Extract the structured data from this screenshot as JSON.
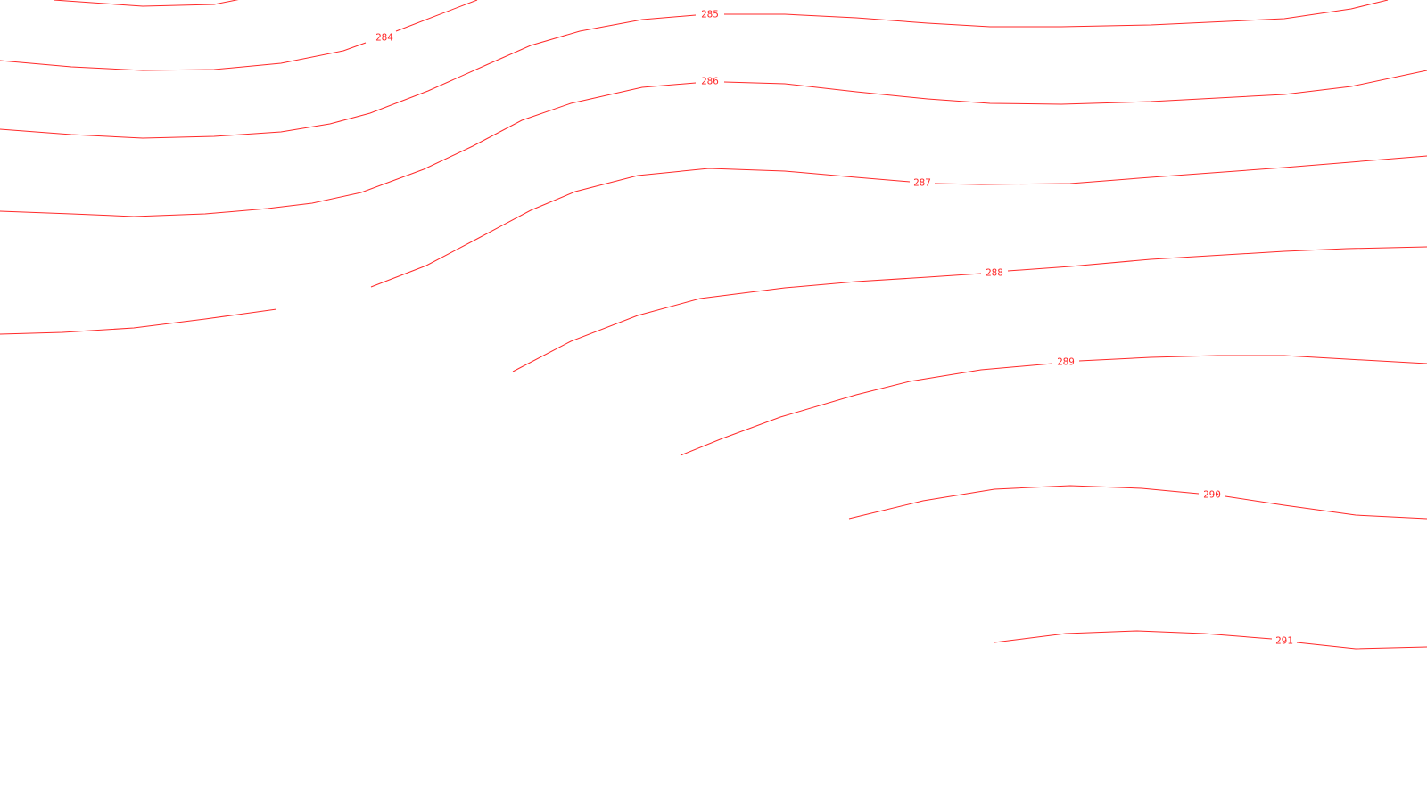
{
  "map": {
    "line_color": "#ff2a2a",
    "label_color": "#ff2a2a",
    "background": "#ffffff",
    "contours": [
      {
        "level": "284",
        "label": "284"
      },
      {
        "level": "285",
        "label": "285"
      },
      {
        "level": "286",
        "label": "286"
      },
      {
        "level": "287",
        "label": "287"
      },
      {
        "level": "288",
        "label": "288"
      },
      {
        "level": "289",
        "label": "289"
      },
      {
        "level": "290",
        "label": "290"
      },
      {
        "level": "291",
        "label": "291"
      }
    ]
  }
}
